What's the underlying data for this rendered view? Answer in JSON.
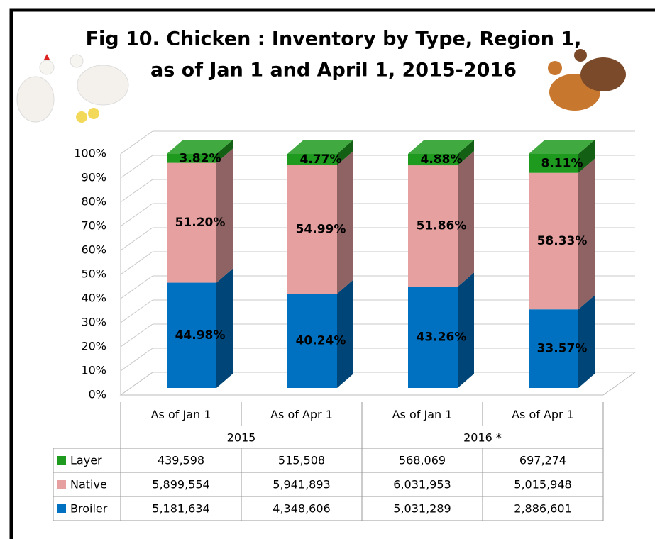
{
  "chart_data": {
    "type": "stacked-bar-3d",
    "title": [
      "Fig 10. Chicken : Inventory by Type, Region 1,",
      "as of Jan 1 and April 1, 2015-2016"
    ],
    "categories": [
      "As of Jan 1",
      "As of Apr 1",
      "As of Jan 1",
      "As of Apr 1"
    ],
    "groups": [
      "2015",
      "2016 *"
    ],
    "ylim": [
      0,
      100
    ],
    "yticks": [
      {
        "value": 0,
        "label": "0%"
      },
      {
        "value": 10,
        "label": "10%"
      },
      {
        "value": 20,
        "label": "20%"
      },
      {
        "value": 30,
        "label": "30%"
      },
      {
        "value": 40,
        "label": "40%"
      },
      {
        "value": 50,
        "label": "50%"
      },
      {
        "value": 60,
        "label": "60%"
      },
      {
        "value": 70,
        "label": "70%"
      },
      {
        "value": 80,
        "label": "80%"
      },
      {
        "value": 90,
        "label": "90%"
      },
      {
        "value": 100,
        "label": "100%"
      }
    ],
    "grid": true,
    "series": [
      {
        "name": "Broiler",
        "color": "#0070c0",
        "values": [
          44.98,
          40.24,
          43.26,
          33.57
        ],
        "value_labels": [
          "44.98%",
          "40.24%",
          "43.26%",
          "33.57%"
        ],
        "counts": [
          {
            "value": 5181634,
            "label": "5,181,634"
          },
          {
            "value": 4348606,
            "label": "4,348,606"
          },
          {
            "value": 5031289,
            "label": "5,031,289"
          },
          {
            "value": 2886601,
            "label": "2,886,601"
          }
        ]
      },
      {
        "name": "Native",
        "color": "#e6a0a0",
        "values": [
          51.2,
          54.99,
          51.86,
          58.33
        ],
        "value_labels": [
          "51.20%",
          "54.99%",
          "51.86%",
          "58.33%"
        ],
        "counts": [
          {
            "value": 5899554,
            "label": "5,899,554"
          },
          {
            "value": 5941893,
            "label": "5,941,893"
          },
          {
            "value": 6031953,
            "label": "6,031,953"
          },
          {
            "value": 5015948,
            "label": "5,015,948"
          }
        ]
      },
      {
        "name": "Layer",
        "color": "#1e9a1e",
        "values": [
          3.82,
          4.77,
          4.88,
          8.11
        ],
        "value_labels": [
          "3.82%",
          "4.77%",
          "4.88%",
          "8.11%"
        ],
        "counts": [
          {
            "value": 439598,
            "label": "439,598"
          },
          {
            "value": 515508,
            "label": "515,508"
          },
          {
            "value": 568069,
            "label": "568,069"
          },
          {
            "value": 697274,
            "label": "697,274"
          }
        ]
      }
    ]
  }
}
